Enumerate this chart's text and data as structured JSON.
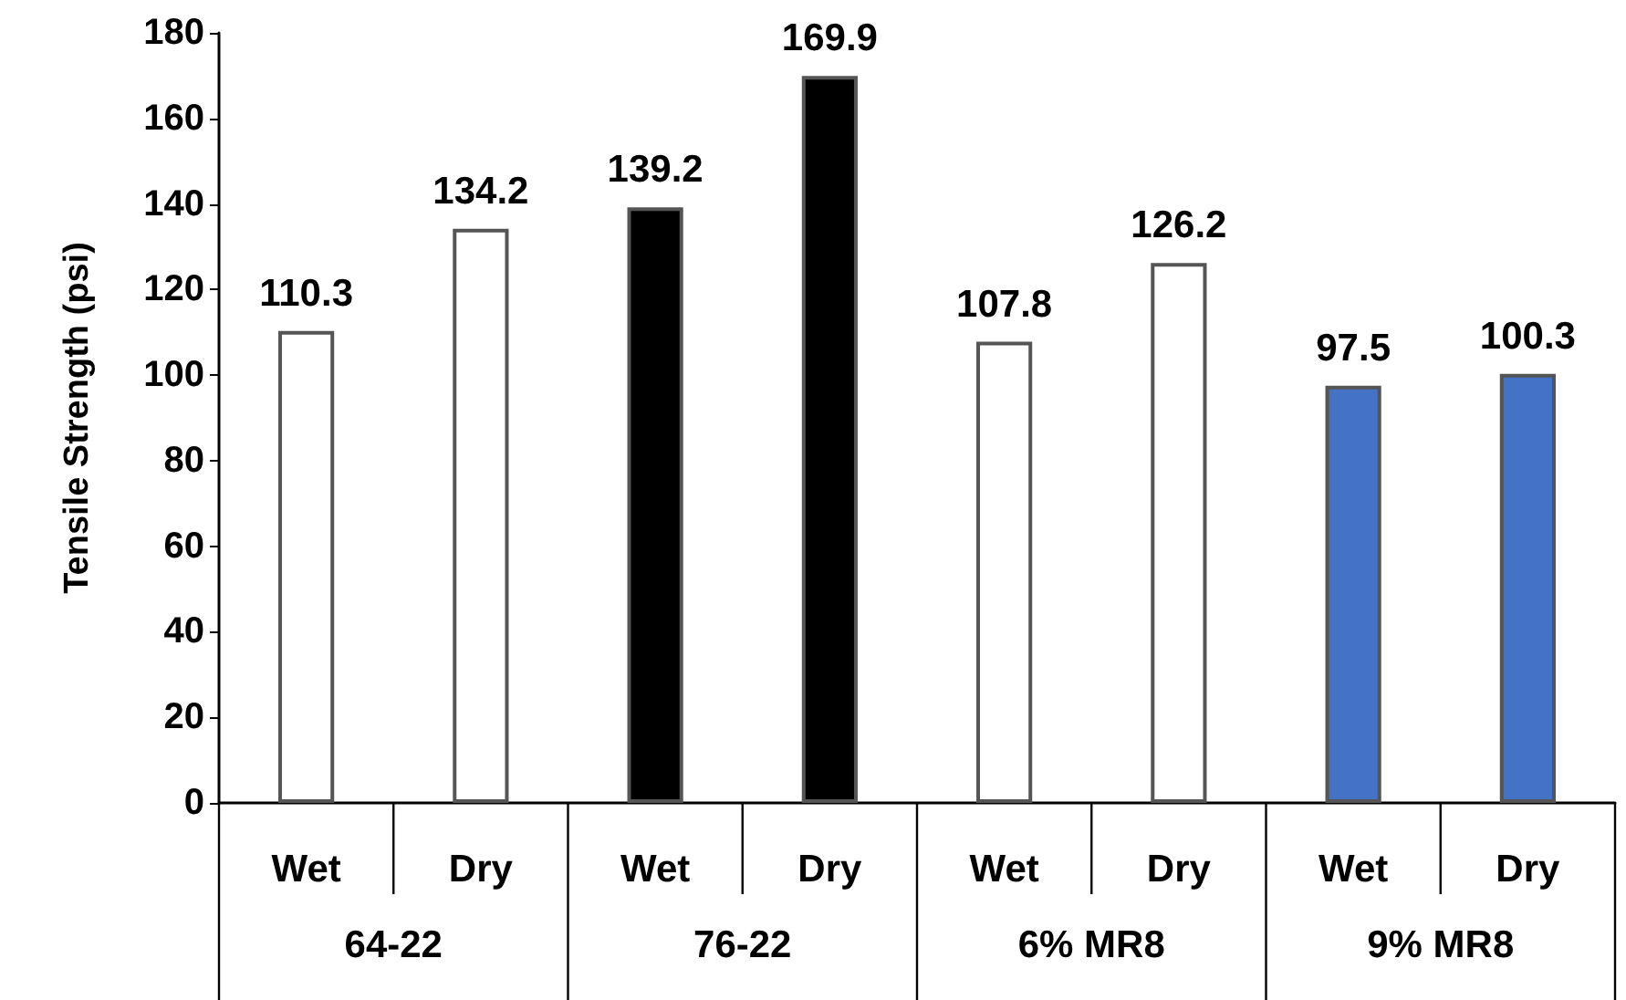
{
  "chart_data": {
    "type": "bar",
    "ylabel": "Tensile Strength (psi)",
    "categories": [
      "Wet",
      "Dry",
      "Wet",
      "Dry",
      "Wet",
      "Dry",
      "Wet",
      "Dry"
    ],
    "values": [
      110.3,
      134.2,
      139.2,
      169.9,
      107.8,
      126.2,
      97.5,
      100.3
    ],
    "colors": [
      "#ffffff",
      "#ffffff",
      "#000000",
      "#000000",
      "#ffffff",
      "#ffffff",
      "#4472c4",
      "#4472c4"
    ],
    "annotations": [
      "64-22",
      "76-22",
      "6% MR8",
      "9% MR8"
    ],
    "ylim": [
      0,
      180
    ],
    "yticks": [
      0,
      20,
      40,
      60,
      80,
      100,
      120,
      140,
      160,
      180
    ],
    "grid": false,
    "data_labels": true
  }
}
